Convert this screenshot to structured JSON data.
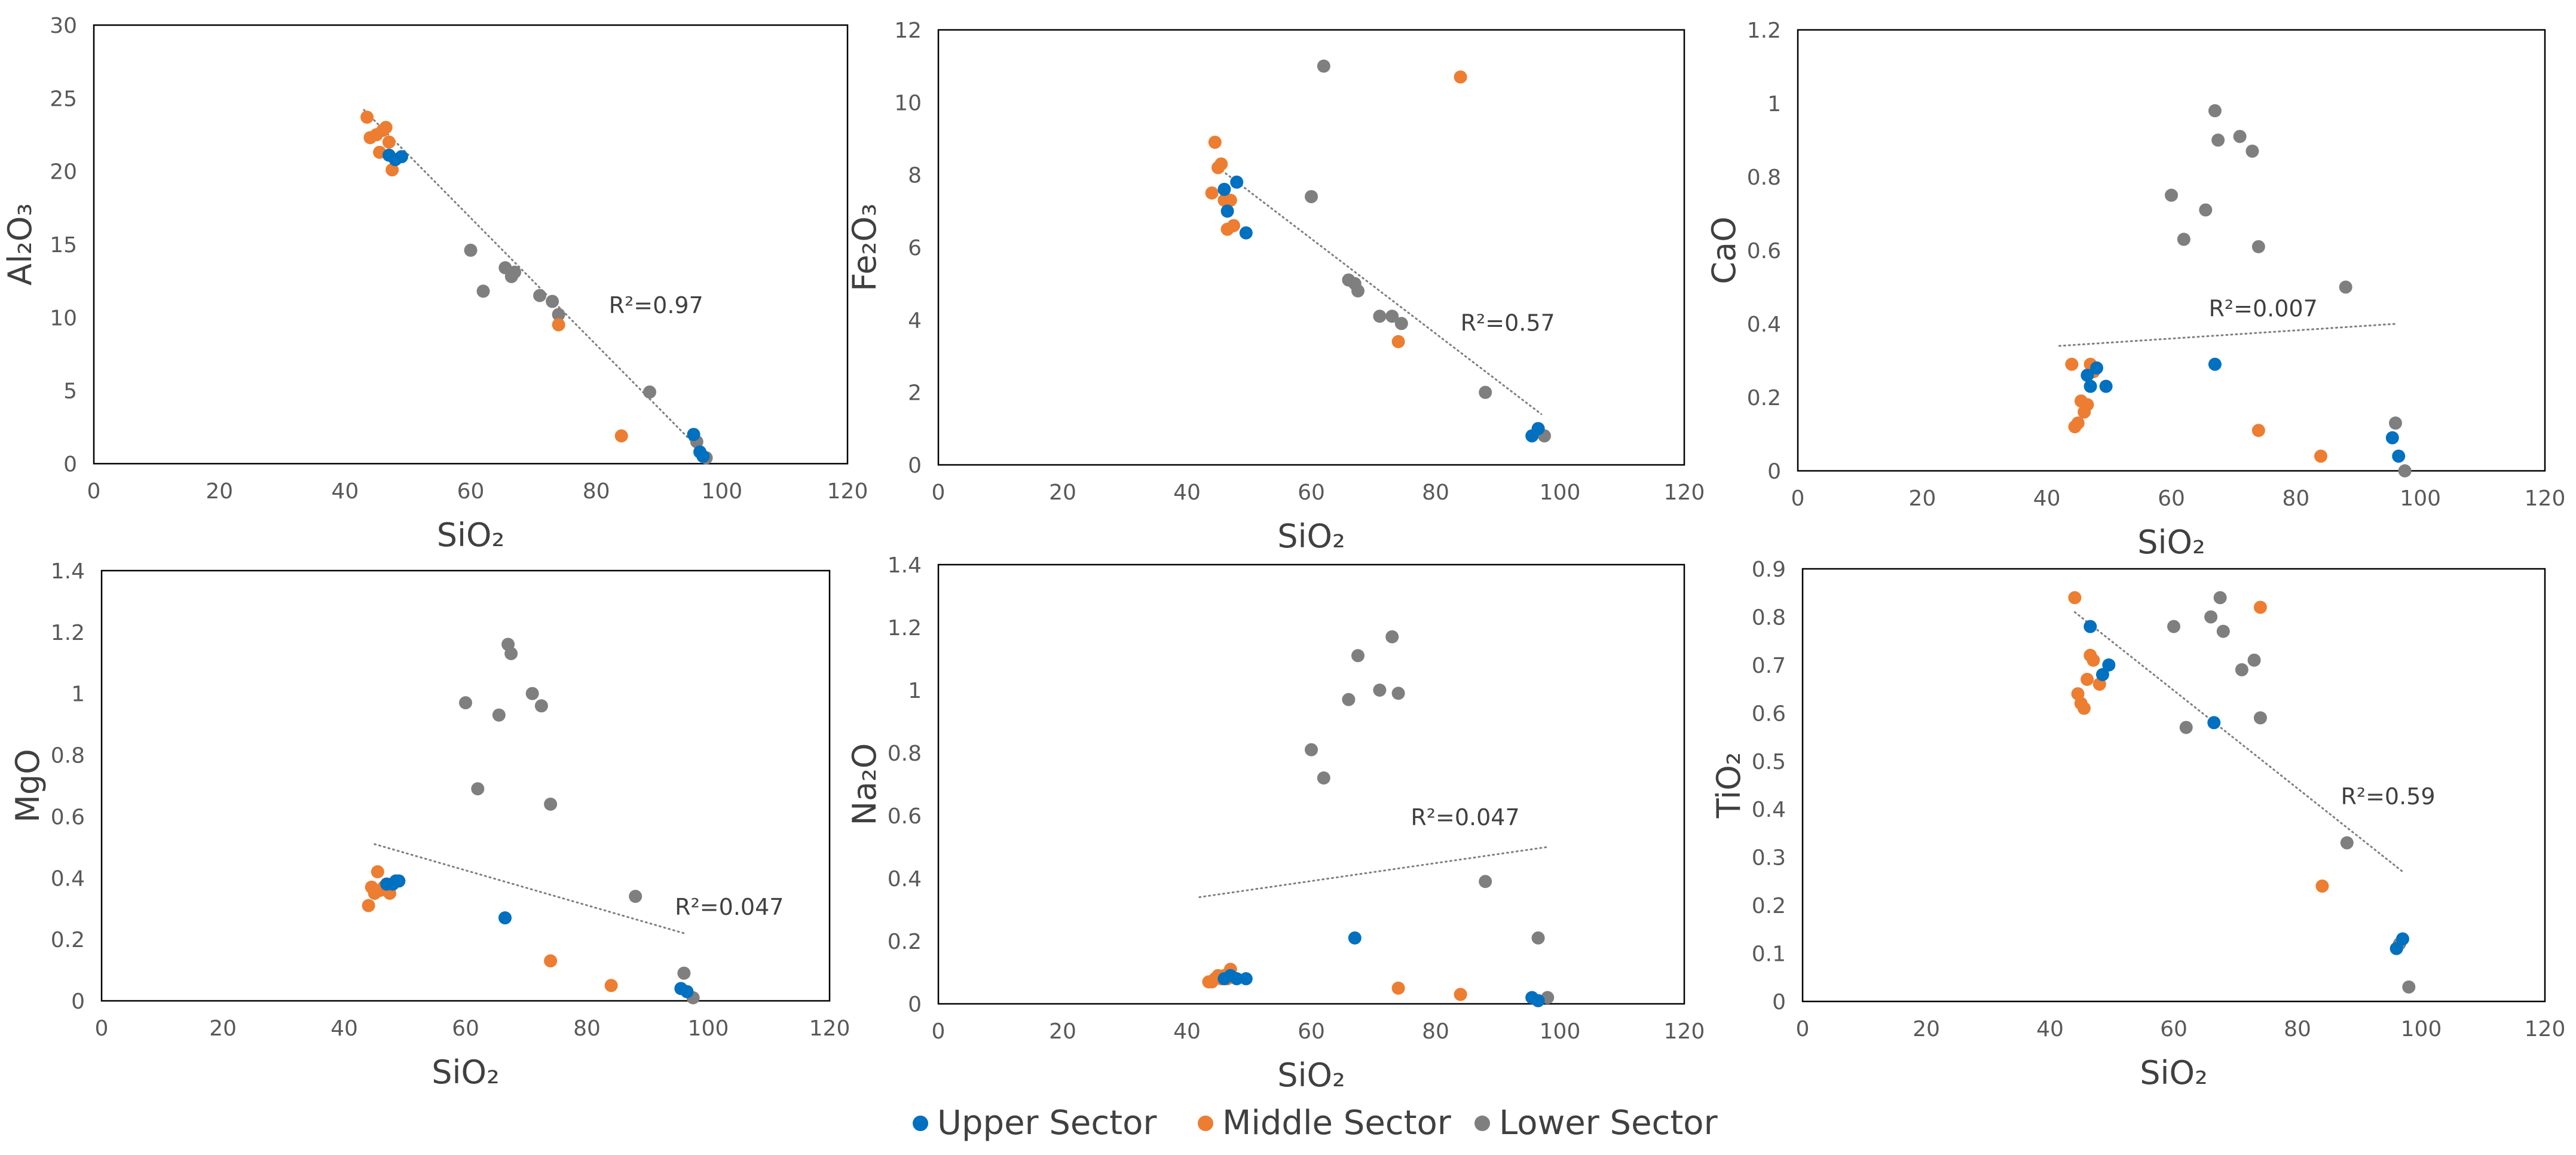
{
  "colors": {
    "upper": "#0070C0",
    "middle": "#ED7D31",
    "lower": "#7F7F7F",
    "axis": "#000000",
    "trend": "#7F7F7F"
  },
  "legend": {
    "items": [
      {
        "key": "upper",
        "label": "Upper Sector"
      },
      {
        "key": "middle",
        "label": "Middle Sector"
      },
      {
        "key": "lower",
        "label": "Lower Sector"
      }
    ]
  },
  "chart_data": [
    {
      "type": "scatter",
      "id": "al2o3",
      "xlabel": "SiO₂",
      "ylabel": "Al₂O₃",
      "xlim": [
        0,
        120
      ],
      "ylim": [
        0,
        30
      ],
      "xticks": [
        "0",
        "20",
        "40",
        "60",
        "80",
        "100",
        "120"
      ],
      "yticks": [
        "0",
        "5",
        "10",
        "15",
        "20",
        "25",
        "30"
      ],
      "r2": "R²=0.97",
      "r2_at": [
        82,
        10.3
      ],
      "trendline": [
        [
          43,
          24.2
        ],
        [
          98,
          0.3
        ]
      ],
      "series": [
        {
          "name": "upper",
          "points": [
            [
              47,
              21.1
            ],
            [
              48,
              20.8
            ],
            [
              49,
              21
            ],
            [
              95.5,
              2
            ],
            [
              96.5,
              0.8
            ],
            [
              97,
              0.5
            ]
          ]
        },
        {
          "name": "middle",
          "points": [
            [
              43.5,
              23.7
            ],
            [
              44,
              22.3
            ],
            [
              45,
              22.5
            ],
            [
              45.5,
              21.3
            ],
            [
              46,
              22.8
            ],
            [
              46.5,
              23
            ],
            [
              47,
              22
            ],
            [
              47.5,
              20.1
            ],
            [
              74,
              9.5
            ],
            [
              84,
              1.9
            ]
          ]
        },
        {
          "name": "lower",
          "points": [
            [
              60,
              14.6
            ],
            [
              62,
              11.8
            ],
            [
              65.5,
              13.4
            ],
            [
              66.5,
              12.8
            ],
            [
              67,
              13.1
            ],
            [
              71,
              11.5
            ],
            [
              73,
              11.1
            ],
            [
              74,
              10.2
            ],
            [
              88.5,
              4.9
            ],
            [
              96,
              1.5
            ],
            [
              97.5,
              0.4
            ]
          ]
        }
      ]
    },
    {
      "type": "scatter",
      "id": "fe2o3",
      "xlabel": "SiO₂",
      "ylabel": "Fe₂O₃",
      "xlim": [
        0,
        120
      ],
      "ylim": [
        0,
        12
      ],
      "xticks": [
        "0",
        "20",
        "40",
        "60",
        "80",
        "100",
        "120"
      ],
      "yticks": [
        "0",
        "2",
        "4",
        "6",
        "8",
        "10",
        "12"
      ],
      "r2": "R²=0.57",
      "r2_at": [
        84,
        3.7
      ],
      "trendline": [
        [
          45,
          8.2
        ],
        [
          97,
          1.4
        ]
      ],
      "series": [
        {
          "name": "upper",
          "points": [
            [
              46,
              7.6
            ],
            [
              46.5,
              7
            ],
            [
              48,
              7.8
            ],
            [
              49.5,
              6.4
            ],
            [
              95.5,
              0.8
            ],
            [
              96.5,
              1
            ]
          ]
        },
        {
          "name": "middle",
          "points": [
            [
              44,
              7.5
            ],
            [
              44.5,
              8.9
            ],
            [
              45,
              8.2
            ],
            [
              45.5,
              8.3
            ],
            [
              46,
              7.3
            ],
            [
              46.5,
              6.5
            ],
            [
              47,
              7.3
            ],
            [
              47.5,
              6.6
            ],
            [
              74,
              3.4
            ],
            [
              84,
              10.7
            ]
          ]
        },
        {
          "name": "lower",
          "points": [
            [
              60,
              7.4
            ],
            [
              62,
              11
            ],
            [
              66,
              5.1
            ],
            [
              67,
              5
            ],
            [
              67.5,
              4.8
            ],
            [
              71,
              4.1
            ],
            [
              73,
              4.1
            ],
            [
              74.5,
              3.9
            ],
            [
              88,
              2
            ],
            [
              96.5,
              1
            ],
            [
              97.5,
              0.8
            ]
          ]
        }
      ]
    },
    {
      "type": "scatter",
      "id": "cao",
      "xlabel": "SiO₂",
      "ylabel": "CaO",
      "xlim": [
        0,
        120
      ],
      "ylim": [
        0,
        1.2
      ],
      "xticks": [
        "0",
        "20",
        "40",
        "60",
        "80",
        "100",
        "120"
      ],
      "yticks": [
        "0",
        "0.2",
        "0.4",
        "0.6",
        "0.8",
        "1",
        "1.2"
      ],
      "r2": "R²=0.007",
      "r2_at": [
        66,
        0.42
      ],
      "trendline": [
        [
          42,
          0.34
        ],
        [
          96,
          0.4
        ]
      ],
      "series": [
        {
          "name": "upper",
          "points": [
            [
              46.5,
              0.26
            ],
            [
              47,
              0.23
            ],
            [
              48,
              0.28
            ],
            [
              49.5,
              0.23
            ],
            [
              67,
              0.29
            ],
            [
              95.5,
              0.09
            ],
            [
              96.5,
              0.04
            ]
          ]
        },
        {
          "name": "middle",
          "points": [
            [
              44,
              0.29
            ],
            [
              44.5,
              0.12
            ],
            [
              45,
              0.13
            ],
            [
              45.5,
              0.19
            ],
            [
              46,
              0.16
            ],
            [
              46.5,
              0.18
            ],
            [
              47,
              0.29
            ],
            [
              47.5,
              0.27
            ],
            [
              74,
              0.11
            ],
            [
              84,
              0.04
            ]
          ]
        },
        {
          "name": "lower",
          "points": [
            [
              60,
              0.75
            ],
            [
              62,
              0.63
            ],
            [
              65.5,
              0.71
            ],
            [
              67,
              0.98
            ],
            [
              67.5,
              0.9
            ],
            [
              71,
              0.91
            ],
            [
              73,
              0.87
            ],
            [
              74,
              0.61
            ],
            [
              88,
              0.5
            ],
            [
              96,
              0.13
            ],
            [
              97.5,
              0
            ]
          ]
        }
      ]
    },
    {
      "type": "scatter",
      "id": "mgo",
      "xlabel": "SiO₂",
      "ylabel": "MgO",
      "xlim": [
        0,
        120
      ],
      "ylim": [
        0,
        1.4
      ],
      "xticks": [
        "0",
        "20",
        "40",
        "60",
        "80",
        "100",
        "120"
      ],
      "yticks": [
        "0",
        "0.2",
        "0.4",
        "0.6",
        "0.8",
        "1",
        "1.2",
        "1.4"
      ],
      "r2": "R²=0.047",
      "r2_at": [
        94.5,
        0.28
      ],
      "trendline": [
        [
          45,
          0.51
        ],
        [
          96,
          0.22
        ]
      ],
      "series": [
        {
          "name": "upper",
          "points": [
            [
              47,
              0.38
            ],
            [
              48,
              0.38
            ],
            [
              48.5,
              0.39
            ],
            [
              49,
              0.39
            ],
            [
              66.5,
              0.27
            ],
            [
              95.5,
              0.04
            ],
            [
              96.5,
              0.03
            ]
          ]
        },
        {
          "name": "middle",
          "points": [
            [
              44,
              0.31
            ],
            [
              44.5,
              0.37
            ],
            [
              45,
              0.35
            ],
            [
              45.5,
              0.42
            ],
            [
              46,
              0.36
            ],
            [
              46.5,
              0.37
            ],
            [
              47,
              0.38
            ],
            [
              47.5,
              0.35
            ],
            [
              74,
              0.13
            ],
            [
              84,
              0.05
            ]
          ]
        },
        {
          "name": "lower",
          "points": [
            [
              60,
              0.97
            ],
            [
              62,
              0.69
            ],
            [
              65.5,
              0.93
            ],
            [
              67,
              1.16
            ],
            [
              67.5,
              1.13
            ],
            [
              71,
              1
            ],
            [
              72.5,
              0.96
            ],
            [
              74,
              0.64
            ],
            [
              88,
              0.34
            ],
            [
              96,
              0.09
            ],
            [
              97.5,
              0.01
            ]
          ]
        }
      ]
    },
    {
      "type": "scatter",
      "id": "na2o",
      "xlabel": "SiO₂",
      "ylabel": "Na₂O",
      "xlim": [
        0,
        120
      ],
      "ylim": [
        0,
        1.4
      ],
      "xticks": [
        "0",
        "20",
        "40",
        "60",
        "80",
        "100",
        "120"
      ],
      "yticks": [
        "0",
        "0.2",
        "0.4",
        "0.6",
        "0.8",
        "1",
        "1.2",
        "1.4"
      ],
      "r2": "R²=0.047",
      "r2_at": [
        76,
        0.57
      ],
      "trendline": [
        [
          42,
          0.34
        ],
        [
          98,
          0.5
        ]
      ],
      "series": [
        {
          "name": "upper",
          "points": [
            [
              46,
              0.08
            ],
            [
              47,
              0.09
            ],
            [
              48,
              0.08
            ],
            [
              49.5,
              0.08
            ],
            [
              67,
              0.21
            ],
            [
              95.5,
              0.02
            ],
            [
              96.5,
              0.01
            ]
          ]
        },
        {
          "name": "middle",
          "points": [
            [
              43.5,
              0.07
            ],
            [
              44,
              0.07
            ],
            [
              44.5,
              0.08
            ],
            [
              45,
              0.09
            ],
            [
              45.5,
              0.08
            ],
            [
              46,
              0.09
            ],
            [
              46.5,
              0.08
            ],
            [
              47,
              0.11
            ],
            [
              74,
              0.05
            ],
            [
              84,
              0.03
            ]
          ]
        },
        {
          "name": "lower",
          "points": [
            [
              60,
              0.81
            ],
            [
              62,
              0.72
            ],
            [
              66,
              0.97
            ],
            [
              67.5,
              1.11
            ],
            [
              71,
              1
            ],
            [
              73,
              1.17
            ],
            [
              74,
              0.99
            ],
            [
              88,
              0.39
            ],
            [
              96.5,
              0.21
            ],
            [
              98,
              0.02
            ]
          ]
        }
      ]
    },
    {
      "type": "scatter",
      "id": "tio2",
      "xlabel": "SiO₂",
      "ylabel": "TiO₂",
      "xlim": [
        0,
        120
      ],
      "ylim": [
        0,
        0.9
      ],
      "xticks": [
        "0",
        "20",
        "40",
        "60",
        "80",
        "100",
        "120"
      ],
      "yticks": [
        "0",
        "0.1",
        "0.2",
        "0.3",
        "0.4",
        "0.5",
        "0.6",
        "0.7",
        "0.8",
        "0.9"
      ],
      "r2": "R²=0.59",
      "r2_at": [
        87,
        0.41
      ],
      "trendline": [
        [
          44,
          0.81
        ],
        [
          97,
          0.27
        ]
      ],
      "series": [
        {
          "name": "upper",
          "points": [
            [
              46.5,
              0.78
            ],
            [
              48.5,
              0.68
            ],
            [
              49.5,
              0.7
            ],
            [
              66.5,
              0.58
            ],
            [
              96,
              0.11
            ],
            [
              97,
              0.13
            ]
          ]
        },
        {
          "name": "middle",
          "points": [
            [
              44,
              0.84
            ],
            [
              44.5,
              0.64
            ],
            [
              45,
              0.62
            ],
            [
              45.5,
              0.61
            ],
            [
              46,
              0.67
            ],
            [
              46.5,
              0.72
            ],
            [
              47,
              0.71
            ],
            [
              48,
              0.66
            ],
            [
              74,
              0.82
            ],
            [
              84,
              0.24
            ]
          ]
        },
        {
          "name": "lower",
          "points": [
            [
              60,
              0.78
            ],
            [
              62,
              0.57
            ],
            [
              66,
              0.8
            ],
            [
              67.5,
              0.84
            ],
            [
              68,
              0.77
            ],
            [
              71,
              0.69
            ],
            [
              73,
              0.71
            ],
            [
              74,
              0.59
            ],
            [
              88,
              0.33
            ],
            [
              96.5,
              0.12
            ],
            [
              98,
              0.03
            ]
          ]
        }
      ]
    }
  ]
}
